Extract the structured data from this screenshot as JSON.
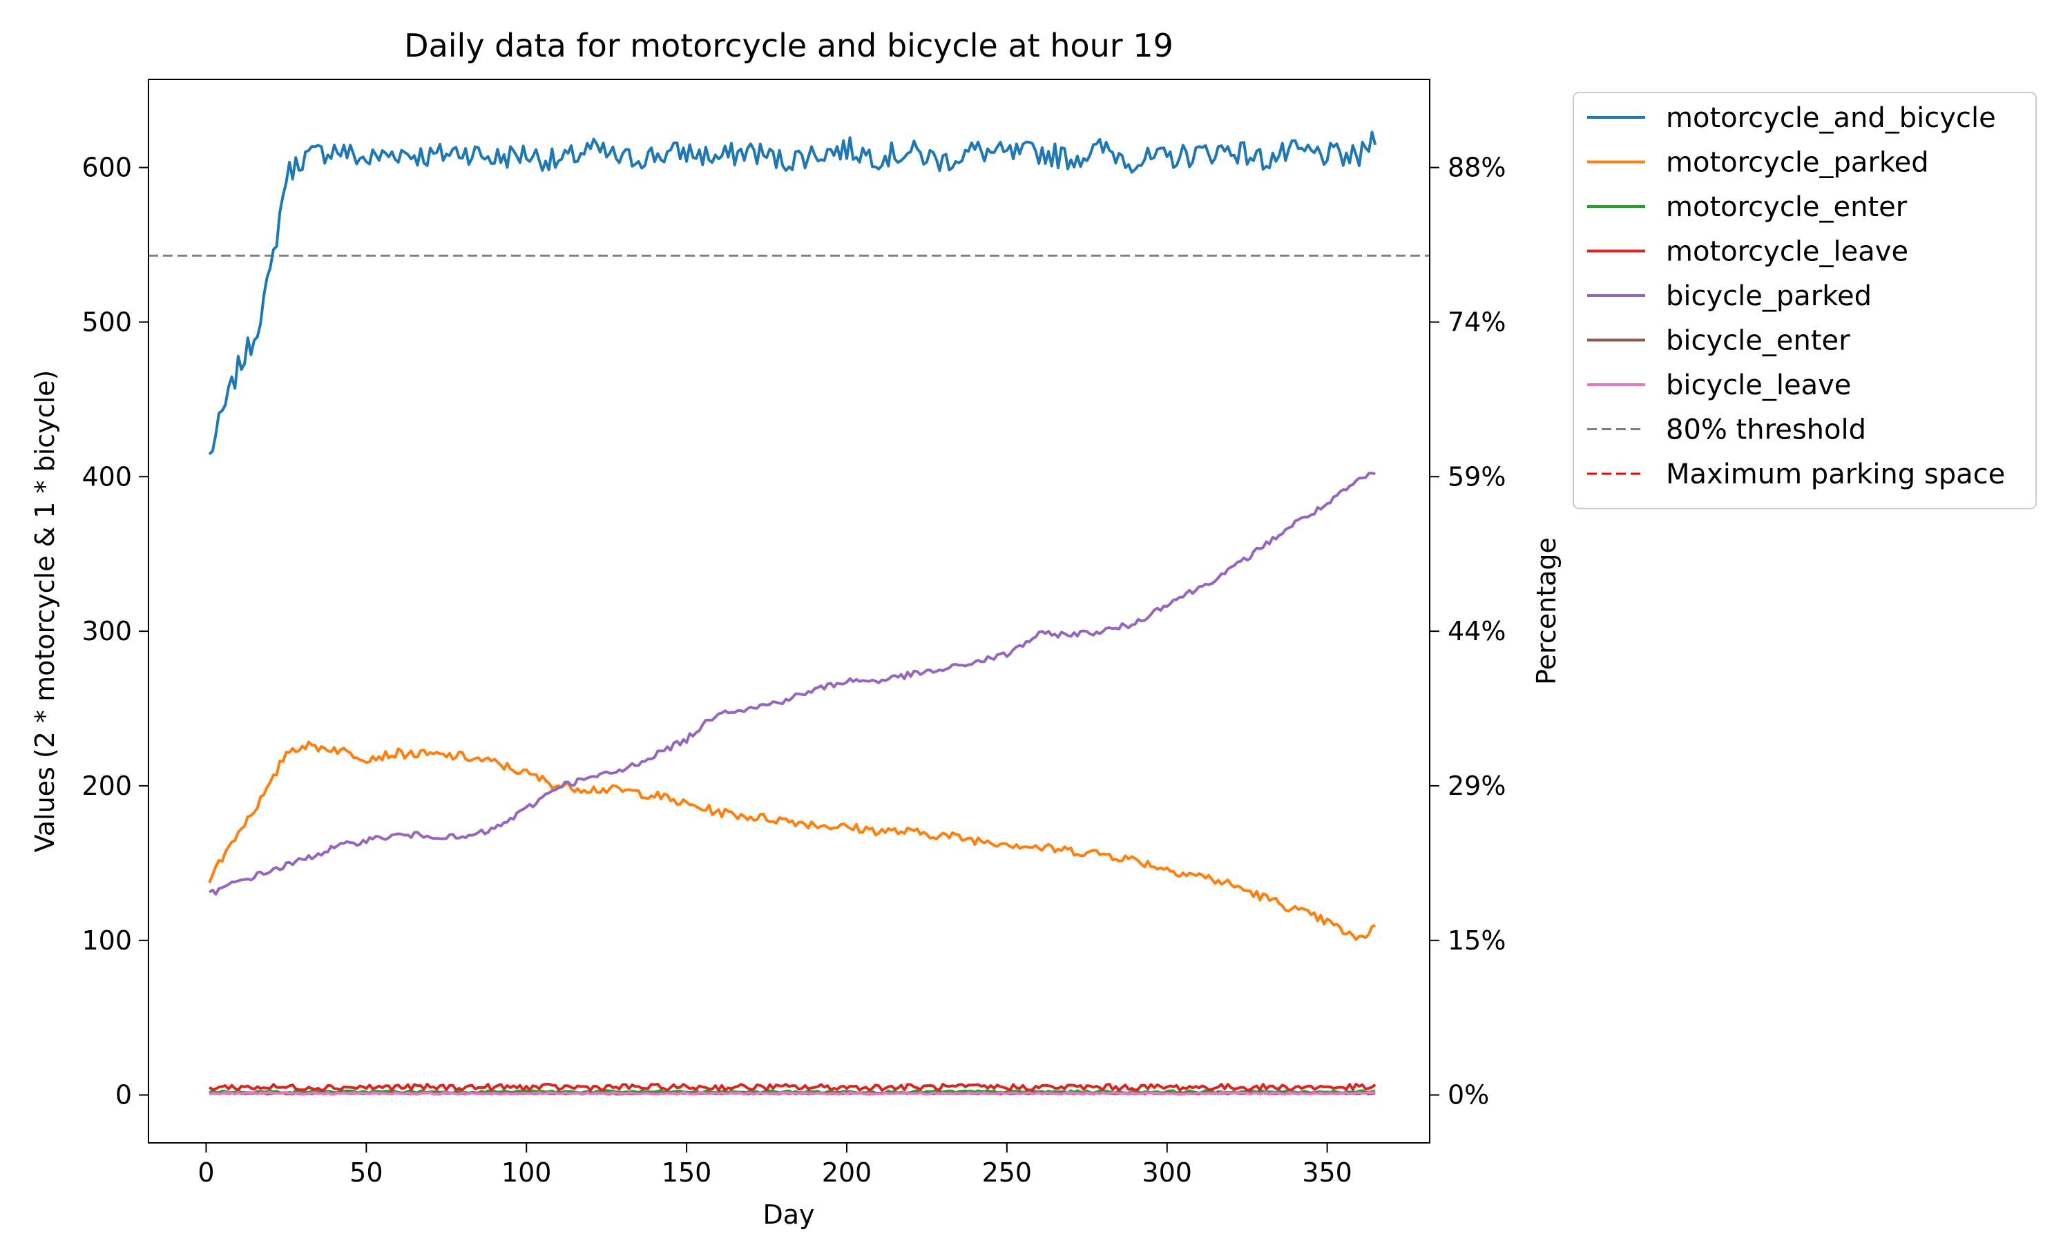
{
  "chart_data": {
    "type": "line",
    "title": "Daily data for motorcycle and bicycle at hour 19",
    "xlabel": "Day",
    "ylabel": "Values (2 * motorcycle & 1 * bicycle)",
    "y2label": "Percentage",
    "xlim": [
      -18,
      382
    ],
    "ylim": [
      -31,
      657
    ],
    "xticks": [
      0,
      50,
      100,
      150,
      200,
      250,
      300,
      350
    ],
    "yticks": [
      0,
      100,
      200,
      300,
      400,
      500,
      600
    ],
    "y2ticks": [
      {
        "value": 0,
        "label": "0%"
      },
      {
        "value": 100,
        "label": "15%"
      },
      {
        "value": 200,
        "label": "29%"
      },
      {
        "value": 300,
        "label": "44%"
      },
      {
        "value": 400,
        "label": "59%"
      },
      {
        "value": 500,
        "label": "74%"
      },
      {
        "value": 600,
        "label": "88%"
      }
    ],
    "legend_position": "outside-upper-right",
    "grid": false,
    "x_range": [
      1,
      365
    ],
    "series": [
      {
        "name": "motorcycle_and_bicycle",
        "color": "#1f77b4",
        "style": "solid",
        "x": [
          1,
          5,
          10,
          15,
          20,
          25,
          30,
          40,
          50,
          60,
          70,
          80,
          90,
          100,
          110,
          120,
          130,
          140,
          150,
          160,
          170,
          180,
          190,
          200,
          210,
          220,
          230,
          240,
          250,
          260,
          270,
          280,
          290,
          300,
          310,
          320,
          330,
          340,
          350,
          360,
          365
        ],
        "y": [
          413,
          440,
          470,
          490,
          530,
          595,
          606,
          612,
          605,
          610,
          607,
          611,
          606,
          609,
          603,
          612,
          605,
          608,
          610,
          606,
          611,
          604,
          609,
          612,
          607,
          610,
          604,
          611,
          608,
          610,
          606,
          612,
          604,
          606,
          609,
          612,
          605,
          610,
          608,
          606,
          622
        ],
        "noise": 8
      },
      {
        "name": "motorcycle_parked",
        "color": "#ff7f0e",
        "style": "solid",
        "x": [
          1,
          10,
          20,
          25,
          30,
          40,
          50,
          60,
          70,
          80,
          90,
          100,
          110,
          120,
          130,
          140,
          150,
          160,
          170,
          180,
          190,
          200,
          210,
          220,
          230,
          240,
          250,
          260,
          270,
          280,
          290,
          300,
          310,
          320,
          330,
          340,
          350,
          360,
          365
        ],
        "y": [
          140,
          170,
          200,
          222,
          226,
          224,
          218,
          221,
          220,
          219,
          215,
          208,
          200,
          198,
          197,
          194,
          188,
          183,
          180,
          178,
          175,
          173,
          171,
          170,
          168,
          165,
          163,
          160,
          158,
          156,
          152,
          146,
          142,
          136,
          128,
          120,
          112,
          100,
          110
        ],
        "noise": 3
      },
      {
        "name": "motorcycle_enter",
        "color": "#2ca02c",
        "style": "solid",
        "x": [
          1,
          365
        ],
        "y": [
          2,
          2
        ],
        "noise": 0.8
      },
      {
        "name": "motorcycle_leave",
        "color": "#d62728",
        "style": "solid",
        "x": [
          1,
          365
        ],
        "y": [
          5,
          5
        ],
        "noise": 2
      },
      {
        "name": "bicycle_parked",
        "color": "#9467bd",
        "style": "solid",
        "x": [
          1,
          10,
          20,
          30,
          40,
          50,
          60,
          70,
          80,
          90,
          100,
          110,
          120,
          130,
          140,
          150,
          160,
          170,
          180,
          190,
          200,
          210,
          220,
          230,
          240,
          250,
          260,
          270,
          280,
          290,
          300,
          310,
          320,
          330,
          340,
          350,
          360,
          365
        ],
        "y": [
          130,
          138,
          145,
          152,
          160,
          165,
          168,
          168,
          166,
          172,
          185,
          200,
          205,
          210,
          220,
          230,
          248,
          250,
          255,
          262,
          268,
          268,
          272,
          275,
          280,
          285,
          298,
          298,
          300,
          305,
          318,
          328,
          340,
          355,
          370,
          382,
          398,
          402
        ],
        "noise": 2
      },
      {
        "name": "bicycle_enter",
        "color": "#8c564b",
        "style": "solid",
        "x": [
          1,
          365
        ],
        "y": [
          1,
          1
        ],
        "noise": 0.5
      },
      {
        "name": "bicycle_leave",
        "color": "#e377c2",
        "style": "solid",
        "x": [
          1,
          365
        ],
        "y": [
          1,
          1
        ],
        "noise": 0.6
      },
      {
        "name": "80% threshold",
        "color": "#808080",
        "style": "dashed",
        "x": [
          -18,
          382
        ],
        "y": [
          543,
          543
        ],
        "noise": 0
      },
      {
        "name": "Maximum parking space",
        "color": "#ff0000",
        "style": "dashed",
        "x": [],
        "y": [],
        "noise": 0
      }
    ]
  }
}
